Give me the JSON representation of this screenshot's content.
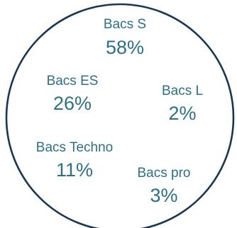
{
  "chart_data": {
    "type": "pie",
    "categories": [
      "Bacs S",
      "Bacs ES",
      "Bacs L",
      "Bacs Techno",
      "Bacs pro"
    ],
    "values": [
      58,
      26,
      2,
      11,
      3
    ],
    "value_labels": [
      "58%",
      "26%",
      "2%",
      "11%",
      "3%"
    ],
    "unit": "%",
    "slice_borders": "none",
    "colors": {
      "text": "#2e6f86",
      "outline": "#1a3650",
      "background": "#ffffff"
    }
  }
}
